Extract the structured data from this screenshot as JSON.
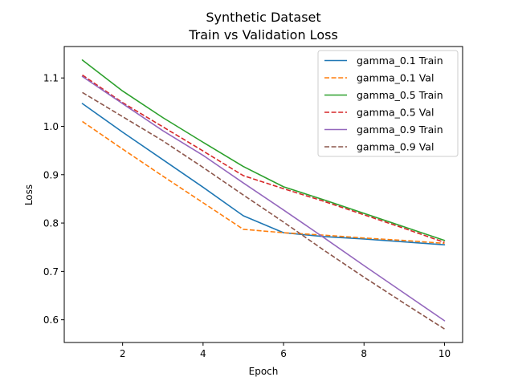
{
  "chart_data": {
    "type": "line",
    "title": "Synthetic Dataset",
    "subtitle": "Train vs Validation Loss",
    "xlabel": "Epoch",
    "ylabel": "Loss",
    "xlim": [
      0.55,
      10.45
    ],
    "ylim": [
      0.553,
      1.165
    ],
    "xticks": [
      2,
      4,
      6,
      8,
      10
    ],
    "yticks": [
      0.6,
      0.7,
      0.8,
      0.9,
      1.0,
      1.1
    ],
    "xtick_labels": [
      "2",
      "4",
      "6",
      "8",
      "10"
    ],
    "ytick_labels": [
      "0.6",
      "0.7",
      "0.8",
      "0.9",
      "1.0",
      "1.1"
    ],
    "grid": false,
    "legend_position": "top-right",
    "x": [
      1,
      2,
      3,
      4,
      5,
      6,
      7,
      8,
      9,
      10
    ],
    "series": [
      {
        "name": "gamma_0.1 Train",
        "color": "#1f77b4",
        "style": "solid",
        "values": [
          1.047,
          0.988,
          0.931,
          0.874,
          0.815,
          0.78,
          0.772,
          0.767,
          0.761,
          0.755
        ]
      },
      {
        "name": "gamma_0.1 Val",
        "color": "#ff7f0e",
        "style": "dashed",
        "values": [
          1.01,
          0.953,
          0.897,
          0.842,
          0.787,
          0.78,
          0.775,
          0.769,
          0.764,
          0.758
        ]
      },
      {
        "name": "gamma_0.5 Train",
        "color": "#2ca02c",
        "style": "solid",
        "values": [
          1.137,
          1.073,
          1.018,
          0.967,
          0.917,
          0.875,
          0.848,
          0.82,
          0.792,
          0.764
        ]
      },
      {
        "name": "gamma_0.5 Val",
        "color": "#d62728",
        "style": "dashed",
        "values": [
          1.106,
          1.049,
          0.999,
          0.949,
          0.898,
          0.871,
          0.845,
          0.817,
          0.789,
          0.76
        ]
      },
      {
        "name": "gamma_0.9 Train",
        "color": "#9467bd",
        "style": "solid",
        "values": [
          1.103,
          1.047,
          0.991,
          0.94,
          0.883,
          0.827,
          0.77,
          0.712,
          0.655,
          0.598
        ]
      },
      {
        "name": "gamma_0.9 Val",
        "color": "#8c564b",
        "style": "dashed",
        "values": [
          1.07,
          1.02,
          0.97,
          0.915,
          0.858,
          0.802,
          0.744,
          0.688,
          0.634,
          0.581
        ]
      }
    ]
  }
}
